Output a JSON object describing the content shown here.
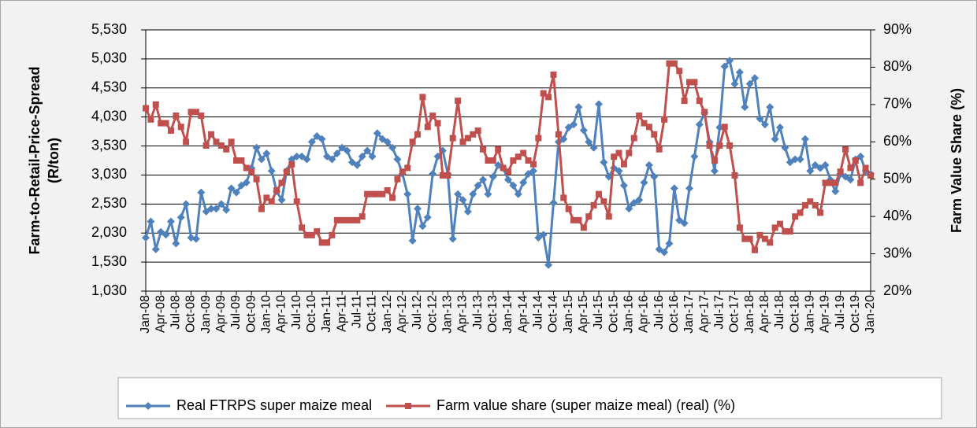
{
  "chart_data": {
    "type": "line",
    "y_label": [
      "Farm-to-Retail-Price-Spread",
      "(R/ton)"
    ],
    "y2_label": "Farm Value Share (%)",
    "categories": [
      "Jan-08",
      null,
      null,
      "Apr-08",
      null,
      null,
      "Jul-08",
      null,
      null,
      "Oct-08",
      null,
      null,
      "Jan-09",
      null,
      null,
      "Apr-09",
      null,
      null,
      "Jul-09",
      null,
      null,
      "Oct-09",
      null,
      null,
      "Jan-10",
      null,
      null,
      "Apr-10",
      null,
      null,
      "Jul-10",
      null,
      null,
      "Oct-10",
      null,
      null,
      "Jan-11",
      null,
      null,
      "Apr-11",
      null,
      null,
      "Jul-11",
      null,
      null,
      "Oct-11",
      null,
      null,
      "Jan-12",
      null,
      null,
      "Apr-12",
      null,
      null,
      "Jul-12",
      null,
      null,
      "Oct-12",
      null,
      null,
      "Jan-13",
      null,
      null,
      "Apr-13",
      null,
      null,
      "Jul-13",
      null,
      null,
      "Oct-13",
      null,
      null,
      "Jan-14",
      null,
      null,
      "Apr-14",
      null,
      null,
      "Jul-14",
      null,
      null,
      "Oct-14",
      null,
      null,
      "Jan-15",
      null,
      null,
      "Apr-15",
      null,
      null,
      "Jul-15",
      null,
      null,
      "Oct-15",
      null,
      null,
      "Jan-16",
      null,
      null,
      "Apr-16",
      null,
      null,
      "Jul-16",
      null,
      null,
      "Oct-16",
      null,
      null,
      "Jan-17",
      null,
      null,
      "Apr-17",
      null,
      null,
      "Jul-17",
      null,
      null,
      "Oct-17",
      null,
      null,
      "Jan-18",
      null,
      null,
      "Apr-18",
      null,
      null,
      "Jul-18",
      null,
      null,
      "Oct-18",
      null,
      null,
      "Jan-19",
      null,
      null,
      "Apr-19",
      null,
      null,
      "Jul-19",
      null,
      null,
      "Oct-19",
      null,
      null,
      "Jan-20"
    ],
    "series": [
      {
        "name": "Real FTRPS super maize meal",
        "color": "#4f81bd",
        "marker": "diamond",
        "values": [
          1950,
          2230,
          1750,
          2050,
          2000,
          2230,
          1850,
          2300,
          2530,
          1950,
          1930,
          2730,
          2400,
          2450,
          2450,
          2530,
          2430,
          2800,
          2730,
          2850,
          2900,
          3150,
          3500,
          3300,
          3400,
          3100,
          2750,
          2600,
          3100,
          3300,
          3350,
          3350,
          3300,
          3600,
          3700,
          3650,
          3350,
          3300,
          3400,
          3500,
          3450,
          3250,
          3200,
          3350,
          3450,
          3350,
          3750,
          3650,
          3600,
          3500,
          3300,
          3050,
          2700,
          1900,
          2450,
          2150,
          2300,
          3050,
          3350,
          3450,
          3050,
          1930,
          2700,
          2600,
          2400,
          2700,
          2850,
          2950,
          2700,
          3000,
          3200,
          3150,
          2950,
          2850,
          2700,
          2900,
          3050,
          3100,
          1950,
          2000,
          1480,
          2550,
          3600,
          3650,
          3850,
          3900,
          4200,
          3800,
          3600,
          3500,
          4250,
          3250,
          3000,
          3150,
          3100,
          2850,
          2450,
          2550,
          2600,
          2900,
          3200,
          3000,
          1750,
          1700,
          1850,
          2800,
          2250,
          2200,
          2800,
          3350,
          3900,
          4100,
          3600,
          3100,
          3850,
          4900,
          5000,
          4600,
          4800,
          4200,
          4600,
          4700,
          4000,
          3900,
          4200,
          3650,
          3850,
          3500,
          3250,
          3300,
          3300,
          3650,
          3100,
          3200,
          3150,
          3200,
          2950,
          2750,
          3050,
          3000,
          2950,
          3300,
          3350,
          3100,
          3050
        ]
      },
      {
        "name": "Farm value share (super maize meal) (real) (%)",
        "color": "#c0504d",
        "marker": "square",
        "axis": "y2",
        "values": [
          69,
          66,
          70,
          65,
          65,
          63,
          67,
          64,
          60,
          68,
          68,
          67,
          59,
          62,
          60,
          59,
          58,
          60,
          55,
          55,
          53,
          52,
          50,
          42,
          45,
          44,
          47,
          49,
          52,
          54,
          44,
          37,
          35,
          35,
          36,
          33,
          33,
          35,
          39,
          39,
          39,
          39,
          39,
          40,
          46,
          46,
          46,
          46,
          47,
          45,
          50,
          52,
          53,
          60,
          62,
          72,
          64,
          67,
          65,
          51,
          51,
          61,
          71,
          60,
          61,
          62,
          63,
          58,
          55,
          55,
          58,
          53,
          52,
          55,
          56,
          57,
          55,
          54,
          61,
          73,
          72,
          78,
          62,
          45,
          42,
          39,
          39,
          37,
          40,
          43,
          46,
          44,
          40,
          56,
          57,
          54,
          57,
          61,
          67,
          65,
          64,
          62,
          58,
          66,
          81,
          81,
          79,
          71,
          76,
          76,
          71,
          68,
          59,
          55,
          59,
          64,
          59,
          51,
          37,
          34,
          34,
          31,
          35,
          34,
          33,
          37,
          38,
          36,
          36,
          40,
          41,
          43,
          44,
          43,
          41,
          49,
          49,
          49,
          52,
          58,
          53,
          55,
          49,
          53,
          51
        ]
      }
    ],
    "ylim": [
      1030,
      5530
    ],
    "yticks": [
      {
        "value": 1030,
        "label": "1,030"
      },
      {
        "value": 1530,
        "label": "1,530"
      },
      {
        "value": 2030,
        "label": "2,030"
      },
      {
        "value": 2530,
        "label": "2,530"
      },
      {
        "value": 3030,
        "label": "3,030"
      },
      {
        "value": 3530,
        "label": "3,530"
      },
      {
        "value": 4030,
        "label": "4,030"
      },
      {
        "value": 4530,
        "label": "4,530"
      },
      {
        "value": 5030,
        "label": "5,030"
      },
      {
        "value": 5530,
        "label": "5,530"
      }
    ],
    "y2lim": [
      20,
      90
    ],
    "y2ticks": [
      {
        "value": 20,
        "label": "20%"
      },
      {
        "value": 30,
        "label": "30%"
      },
      {
        "value": 40,
        "label": "40%"
      },
      {
        "value": 50,
        "label": "50%"
      },
      {
        "value": 60,
        "label": "60%"
      },
      {
        "value": 70,
        "label": "70%"
      },
      {
        "value": 80,
        "label": "80%"
      },
      {
        "value": 90,
        "label": "90%"
      }
    ],
    "grid": true,
    "legend": "bottom"
  }
}
